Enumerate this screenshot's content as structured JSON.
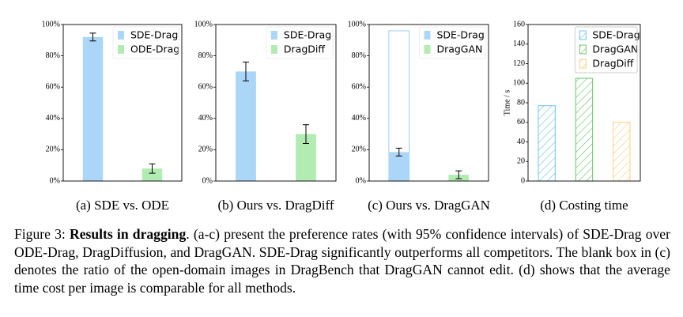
{
  "chart_data": [
    {
      "type": "bar",
      "subtitle": "(a) SDE vs. ODE",
      "ylim": [
        0,
        100
      ],
      "yticks": [
        {
          "value": 0,
          "label": "0%"
        },
        {
          "value": 20,
          "label": "20%"
        },
        {
          "value": 40,
          "label": "40%"
        },
        {
          "value": 60,
          "label": "60%"
        },
        {
          "value": 80,
          "label": "80%"
        },
        {
          "value": 100,
          "label": "100%"
        }
      ],
      "series": [
        {
          "name": "SDE-Drag",
          "color": "#abd6f7",
          "values": [
            92
          ],
          "errors": [
            2.5
          ]
        },
        {
          "name": "ODE-Drag",
          "color": "#b3ecb3",
          "values": [
            8
          ],
          "errors": [
            3
          ]
        }
      ]
    },
    {
      "type": "bar",
      "subtitle": "(b) Ours vs. DragDiff",
      "ylim": [
        0,
        100
      ],
      "yticks": [
        {
          "value": 0,
          "label": "0%"
        },
        {
          "value": 20,
          "label": "20%"
        },
        {
          "value": 40,
          "label": "40%"
        },
        {
          "value": 60,
          "label": "60%"
        },
        {
          "value": 80,
          "label": "80%"
        },
        {
          "value": 100,
          "label": "100%"
        }
      ],
      "series": [
        {
          "name": "SDE-Drag",
          "color": "#abd6f7",
          "values": [
            70
          ],
          "errors": [
            6
          ]
        },
        {
          "name": "DragDiff",
          "color": "#b3ecb3",
          "values": [
            30
          ],
          "errors": [
            6
          ]
        }
      ]
    },
    {
      "type": "bar",
      "subtitle": "(c) Ours vs. DragGAN",
      "ylim": [
        0,
        100
      ],
      "yticks": [
        {
          "value": 0,
          "label": "0%"
        },
        {
          "value": 20,
          "label": "20%"
        },
        {
          "value": 40,
          "label": "40%"
        },
        {
          "value": 60,
          "label": "60%"
        },
        {
          "value": 80,
          "label": "80%"
        },
        {
          "value": 100,
          "label": "100%"
        }
      ],
      "series": [
        {
          "name": "SDE-Drag",
          "color": "#abd6f7",
          "values": [
            18.5
          ],
          "errors": [
            2.5
          ],
          "box_values": [
            96
          ]
        },
        {
          "name": "DragGAN",
          "color": "#b3ecb3",
          "values": [
            4
          ],
          "errors": [
            2.5
          ]
        }
      ]
    },
    {
      "type": "hatched_bar",
      "subtitle": "(d) Costing time",
      "ylabel": "Time / s",
      "ylim": [
        0,
        160
      ],
      "yticks": [
        0,
        20,
        40,
        60,
        80,
        100,
        120,
        140,
        160
      ],
      "series": [
        {
          "name": "SDE-Drag",
          "color": "#6cc5e8",
          "values": [
            77
          ]
        },
        {
          "name": "DragGAN",
          "color": "#6cc46c",
          "values": [
            105
          ]
        },
        {
          "name": "DragDiff",
          "color": "#f8cf86",
          "values": [
            60
          ]
        }
      ]
    }
  ],
  "caption": {
    "label": "Figure 3:",
    "title": "Results in dragging",
    "text": ". (a-c) present the preference rates (with 95% confidence intervals) of SDE-Drag over ODE-Drag, DragDiffusion, and DragGAN. SDE-Drag significantly outperforms all competitors. The blank box in (c) denotes the ratio of the open-domain images in DragBench that DragGAN cannot edit. (d) shows that the average time cost per image is comparable for all methods."
  }
}
